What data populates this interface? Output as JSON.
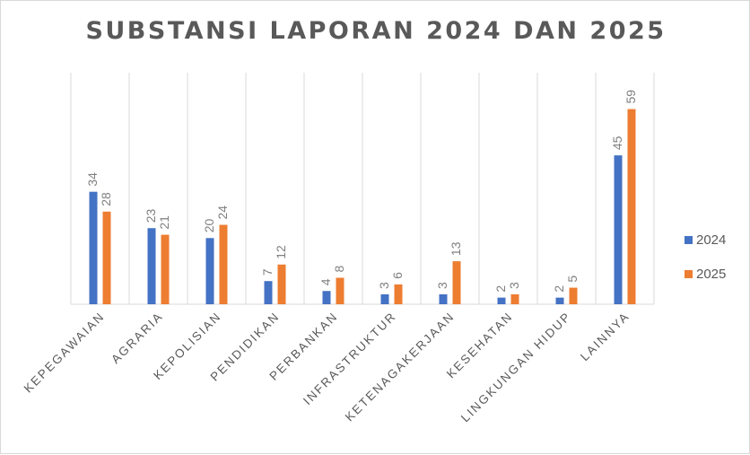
{
  "chart_data": {
    "type": "bar",
    "title": "SUBSTANSI LAPORAN 2024 DAN 2025",
    "categories": [
      "KEPEGAWAIAN",
      "AGRARIA",
      "KEPOLISIAN",
      "PENDIDIKAN",
      "PERBANKAN",
      "INFRASTRUKTUR",
      "KETENAGAKERJAAN",
      "KESEHATAN",
      "LINGKUNGAN HIDUP",
      "LAINNYA"
    ],
    "series": [
      {
        "name": "2024",
        "color": "#4472c4",
        "values": [
          34,
          23,
          20,
          7,
          4,
          3,
          3,
          2,
          2,
          45
        ]
      },
      {
        "name": "2025",
        "color": "#ed7d31",
        "values": [
          28,
          21,
          24,
          12,
          8,
          6,
          13,
          3,
          5,
          59
        ]
      }
    ],
    "ylim": [
      0,
      70
    ],
    "grid": "vertical category separators",
    "legend": "right",
    "data_labels": true
  }
}
